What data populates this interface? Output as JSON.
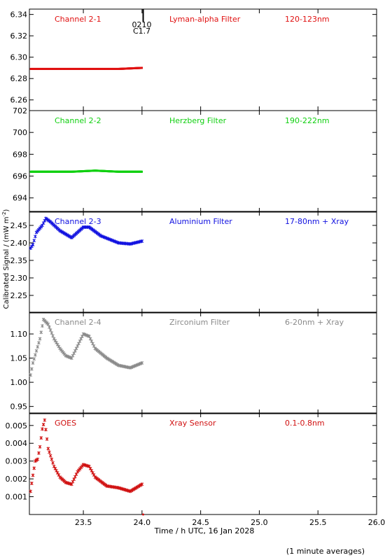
{
  "ylabel": "Calibrated Signal / (mW m",
  "ylabel_sup": "-2",
  "ylabel_end": ")",
  "xlabel": "Time / h UTC, 16 Jan 2028",
  "footnote": "(1 minute averages)",
  "x_range": [
    23.04,
    26.0
  ],
  "x_ticks": [
    "23.5",
    "24.0",
    "24.5",
    "25.0",
    "25.5",
    "26.0"
  ],
  "marker": {
    "x": 24.01,
    "label_top": "0210",
    "label_bottom": "C1.7"
  },
  "chart_data": [
    {
      "type": "scatter",
      "name": "Channel 2-1",
      "filter": "Lyman-alpha Filter",
      "band": "120-123nm",
      "color": "#e01010",
      "ylim": [
        6.25,
        6.345
      ],
      "y_ticks": [
        "6.26",
        "6.28",
        "6.30",
        "6.32",
        "6.34"
      ],
      "x": [
        23.05,
        23.2,
        23.4,
        23.6,
        23.8,
        24.0
      ],
      "y": [
        6.289,
        6.289,
        6.289,
        6.289,
        6.289,
        6.29
      ]
    },
    {
      "type": "scatter",
      "name": "Channel 2-2",
      "filter": "Herzberg Filter",
      "band": "190-222nm",
      "color": "#10d010",
      "ylim": [
        692.7,
        702.0
      ],
      "y_ticks": [
        "694",
        "696",
        "698",
        "700",
        "702"
      ],
      "x": [
        23.05,
        23.2,
        23.4,
        23.6,
        23.8,
        24.0
      ],
      "y": [
        696.4,
        696.4,
        696.4,
        696.5,
        696.4,
        696.4
      ]
    },
    {
      "type": "scatter",
      "name": "Channel 2-3",
      "filter": "Aluminium Filter",
      "band": "17-80nm + Xray",
      "color": "#1010e0",
      "ylim": [
        2.2,
        2.49
      ],
      "y_ticks": [
        "2.25",
        "2.30",
        "2.35",
        "2.40",
        "2.45"
      ],
      "x": [
        23.05,
        23.07,
        23.1,
        23.15,
        23.18,
        23.22,
        23.3,
        23.4,
        23.45,
        23.5,
        23.55,
        23.65,
        23.8,
        23.9,
        24.0
      ],
      "y": [
        2.385,
        2.395,
        2.43,
        2.45,
        2.47,
        2.46,
        2.435,
        2.415,
        2.43,
        2.445,
        2.445,
        2.42,
        2.4,
        2.397,
        2.405
      ]
    },
    {
      "type": "scatter",
      "name": "Channel 2-4",
      "filter": "Zirconium Filter",
      "band": "6-20nm + Xray",
      "color": "#8a8a8a",
      "ylim": [
        0.935,
        1.145
      ],
      "y_ticks": [
        "0.95",
        "1.00",
        "1.05",
        "1.10"
      ],
      "x": [
        23.05,
        23.07,
        23.1,
        23.13,
        23.16,
        23.2,
        23.25,
        23.3,
        23.35,
        23.4,
        23.45,
        23.5,
        23.55,
        23.6,
        23.7,
        23.8,
        23.9,
        24.0
      ],
      "y": [
        1.015,
        1.04,
        1.065,
        1.09,
        1.13,
        1.12,
        1.09,
        1.07,
        1.055,
        1.05,
        1.075,
        1.1,
        1.095,
        1.07,
        1.05,
        1.035,
        1.03,
        1.04
      ]
    },
    {
      "type": "scatter",
      "name": "GOES",
      "filter": "Xray Sensor",
      "band": "0.1-0.8nm",
      "color": "#d01010",
      "ylim": [
        0.0,
        0.0057
      ],
      "y_ticks": [
        "0.001",
        "0.002",
        "0.003",
        "0.004",
        "0.005"
      ],
      "x": [
        23.05,
        23.07,
        23.09,
        23.11,
        23.13,
        23.15,
        23.17,
        23.2,
        23.25,
        23.3,
        23.35,
        23.4,
        23.45,
        23.5,
        23.55,
        23.6,
        23.7,
        23.8,
        23.9,
        24.0
      ],
      "y": [
        0.0013,
        0.0022,
        0.003,
        0.0031,
        0.0038,
        0.0048,
        0.0053,
        0.0037,
        0.0027,
        0.0021,
        0.0018,
        0.0017,
        0.0024,
        0.0028,
        0.0027,
        0.0021,
        0.0016,
        0.0015,
        0.0013,
        0.0017
      ]
    }
  ]
}
